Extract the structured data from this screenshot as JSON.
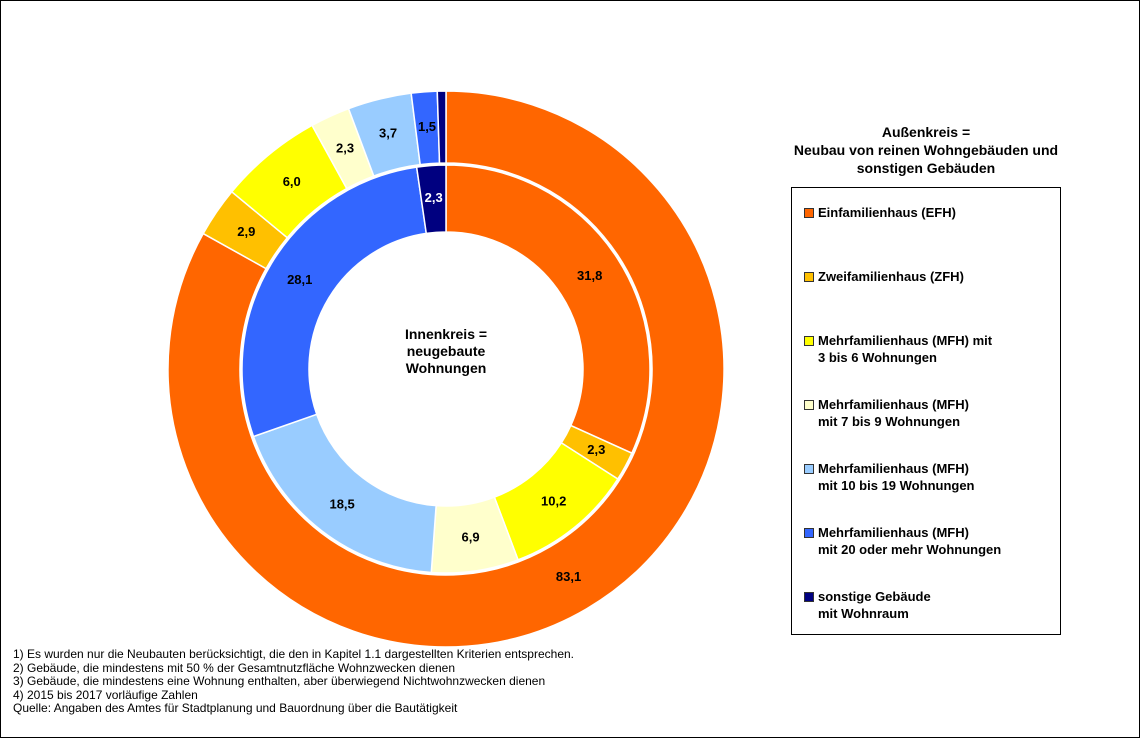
{
  "chart_data": {
    "type": "donut",
    "center_label": "Innenkreis =\nneugebaute\nWohnungen",
    "legend_title": "Außenkreis =\nNeubau von reinen Wohngebäuden und\nsonstigen Gebäuden",
    "categories": [
      "Einfamilienhaus (EFH)",
      "Zweifamilienhaus (ZFH)",
      "Mehrfamilienhaus (MFH) mit\n3 bis 6  Wohnungen",
      "Mehrfamilienhaus (MFH)\nmit 7 bis 9 Wohnungen",
      "Mehrfamilienhaus (MFH)\nmit 10 bis 19 Wohnungen",
      "Mehrfamilienhaus (MFH)\nmit 20 oder mehr Wohnungen",
      "sonstige Gebäude\nmit Wohnraum"
    ],
    "colors": [
      "#ff6600",
      "#ffc000",
      "#ffff00",
      "#ffffcc",
      "#99ccff",
      "#3366ff",
      "#000080"
    ],
    "rings": [
      {
        "values": [
          83.1,
          2.9,
          6.0,
          2.3,
          3.7,
          1.5,
          0.5
        ],
        "value_labels": [
          "83,1",
          "2,9",
          "6,0",
          "2,3",
          "3,7",
          "1,5",
          null
        ]
      },
      {
        "values": [
          31.8,
          2.3,
          10.2,
          6.9,
          18.5,
          28.1,
          2.3
        ],
        "value_labels": [
          "31,8",
          "2,3",
          "10,2",
          "6,9",
          "18,5",
          "28,1",
          "2,3"
        ]
      }
    ],
    "footnotes": [
      "1) Es wurden nur die Neubauten berücksichtigt, die den in Kapitel 1.1 dargestellten Kriterien entsprechen.",
      "2) Gebäude, die mindestens mit 50 % der Gesamtnutzfläche Wohnzwecken dienen",
      "3) Gebäude, die mindestens eine Wohnung enthalten, aber überwiegend Nichtwohnzwecken dienen",
      "4) 2015 bis 2017 vorläufige Zahlen",
      "Quelle: Angaben des Amtes für Stadtplanung und Bauordnung über die Bautätigkeit"
    ]
  }
}
